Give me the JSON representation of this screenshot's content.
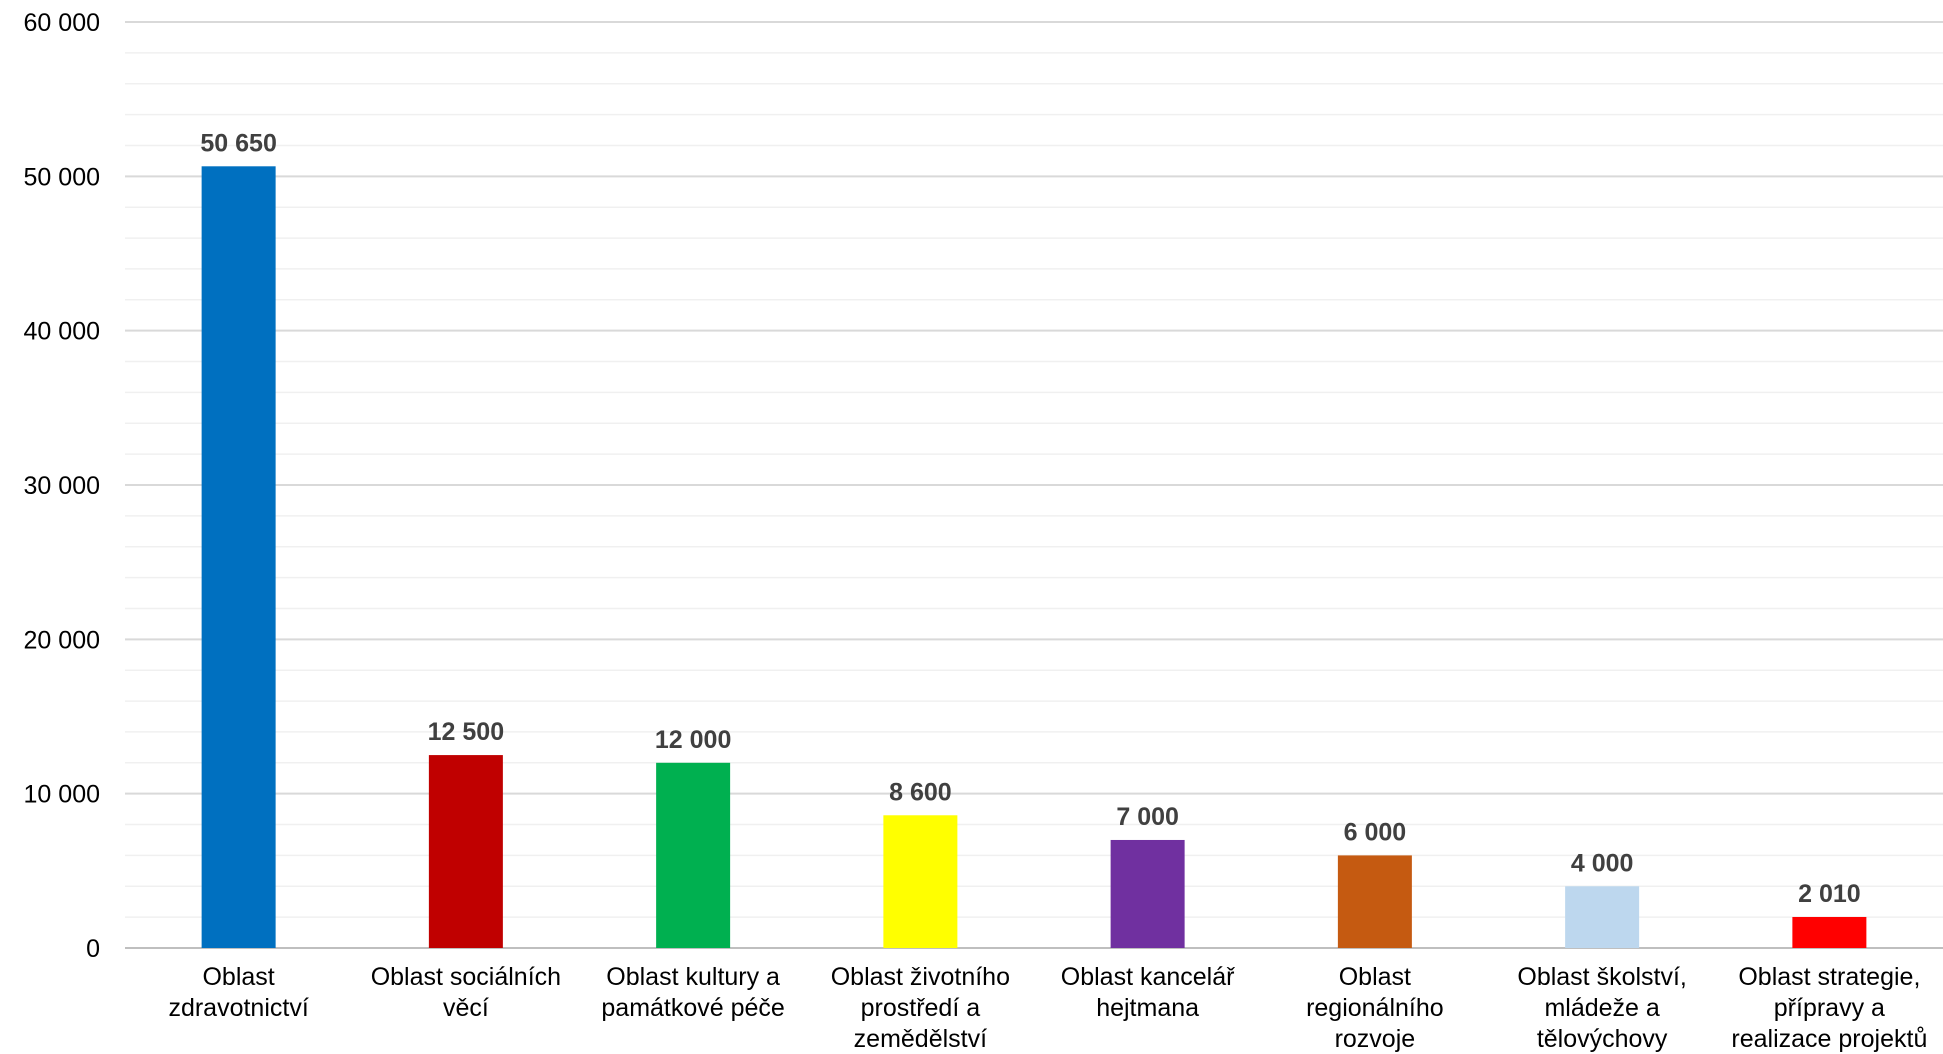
{
  "chart_data": {
    "type": "bar",
    "title": "",
    "xlabel": "",
    "ylabel": "",
    "ylim": [
      0,
      60000
    ],
    "yticks": [
      0,
      10000,
      20000,
      30000,
      40000,
      50000,
      60000
    ],
    "ytick_labels": [
      "0",
      "10 000",
      "20 000",
      "30 000",
      "40 000",
      "50 000",
      "60 000"
    ],
    "minor_grid_step": 2000,
    "grid": true,
    "legend": "none",
    "categories": [
      [
        "Oblast",
        "zdravotnictví"
      ],
      [
        "Oblast sociálních",
        "věcí"
      ],
      [
        "Oblast kultury a",
        "památkové péče"
      ],
      [
        "Oblast životního",
        "prostředí a",
        "zemědělství"
      ],
      [
        "Oblast kancelář",
        "hejtmana"
      ],
      [
        "Oblast",
        "regionálního",
        "rozvoje"
      ],
      [
        "Oblast školství,",
        "mládeže a",
        "tělovýchovy"
      ],
      [
        "Oblast strategie,",
        "přípravy a",
        "realizace projektů"
      ]
    ],
    "values": [
      50650,
      12500,
      12000,
      8600,
      7000,
      6000,
      4000,
      2010
    ],
    "data_labels": [
      "50 650",
      "12 500",
      "12 000",
      "8 600",
      "7 000",
      "6 000",
      "4 000",
      "2 010"
    ],
    "colors": [
      "#0070C0",
      "#C00000",
      "#00B050",
      "#FFFF00",
      "#7030A0",
      "#C55A11",
      "#BDD7EE",
      "#FF0000"
    ]
  }
}
